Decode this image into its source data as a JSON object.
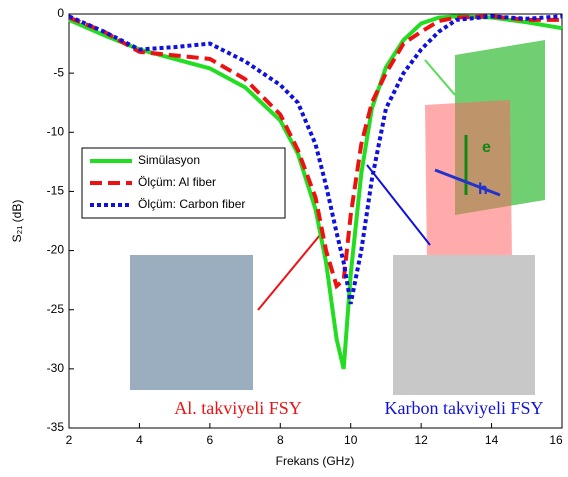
{
  "chart_data": {
    "type": "line",
    "xlabel": "Frekans (GHz)",
    "ylabel": "S₂₁ (dB)",
    "x": [
      2,
      3,
      4,
      5,
      6,
      7,
      8,
      8.5,
      9,
      9.3,
      9.6,
      9.8,
      10,
      10.3,
      10.6,
      11,
      11.5,
      12,
      12.5,
      13,
      14,
      15,
      16
    ],
    "series": [
      {
        "name": "Simülasyon",
        "color": "#22dd22",
        "dash": "solid",
        "values": [
          -0.5,
          -1.8,
          -3,
          -3.8,
          -4.6,
          -6.2,
          -9,
          -11.8,
          -16.5,
          -21,
          -27.5,
          -30,
          -22,
          -13.5,
          -8,
          -4.5,
          -2.2,
          -0.8,
          -0.3,
          -0.2,
          -0.3,
          -0.7,
          -1.2
        ]
      },
      {
        "name": "Ölçüm: Al fiber",
        "color": "#ee1111",
        "dash": "dashed",
        "values": [
          -0.3,
          -1.5,
          -3.2,
          -3.5,
          -3.8,
          -5.5,
          -8.5,
          -11.5,
          -15.5,
          -20,
          -23,
          -22.5,
          -17,
          -11,
          -7.5,
          -5,
          -2.5,
          -1.5,
          -0.6,
          -0.3,
          -0.2,
          -0.5,
          -0.5
        ]
      },
      {
        "name": "Ölçüm: Carbon fiber",
        "color": "#1111dd",
        "dash": "dotted",
        "values": [
          -0.2,
          -1.5,
          -3,
          -2.8,
          -2.5,
          -4,
          -6,
          -7.5,
          -11,
          -14.5,
          -18.5,
          -21,
          -24.5,
          -20,
          -14,
          -8,
          -5,
          -3,
          -1.5,
          -0.5,
          -0.2,
          -0.4,
          -0.2
        ]
      }
    ],
    "xlim": [
      2,
      16
    ],
    "xticks": [
      2,
      4,
      6,
      8,
      10,
      12,
      14,
      16
    ],
    "ylim": [
      -35,
      0
    ],
    "yticks": [
      0,
      -5,
      -10,
      -15,
      -20,
      -25,
      -30,
      -35
    ],
    "legend": "center left",
    "annotations": [
      "Al. takviyeli FSY",
      "Karbon takviyeli FSY",
      "e",
      "h"
    ]
  }
}
